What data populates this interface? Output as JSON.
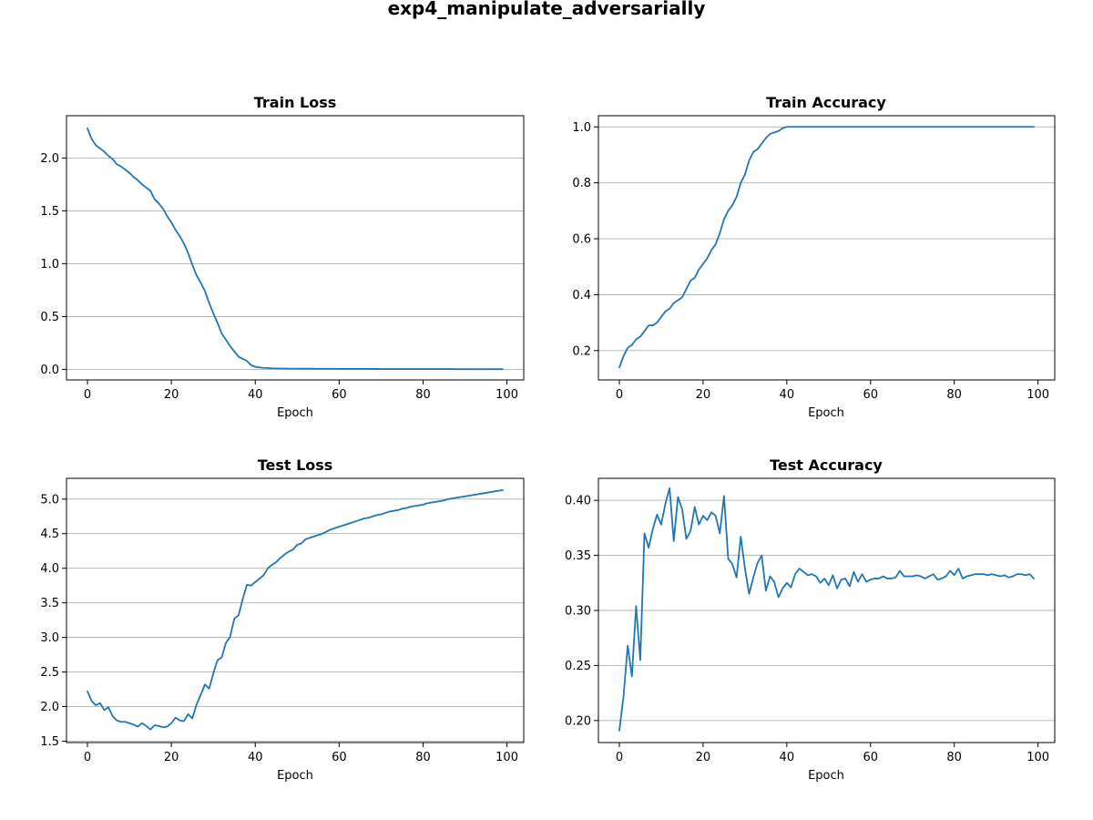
{
  "figure": {
    "title": "exp4_manipulate_adversarially"
  },
  "chart_data": [
    {
      "type": "line",
      "title": "Train Loss",
      "xlabel": "Epoch",
      "ylabel": "",
      "xlim": [
        -5,
        104
      ],
      "ylim": [
        -0.1,
        2.4
      ],
      "xticks": [
        0,
        20,
        40,
        60,
        80,
        100
      ],
      "yticks": [
        0.0,
        0.5,
        1.0,
        1.5,
        2.0
      ],
      "ytick_labels": [
        "0.0",
        "0.5",
        "1.0",
        "1.5",
        "2.0"
      ],
      "grid": "y",
      "color": "#1f77b4",
      "x": [
        0,
        1,
        2,
        3,
        4,
        5,
        6,
        7,
        8,
        9,
        10,
        11,
        12,
        13,
        14,
        15,
        16,
        17,
        18,
        19,
        20,
        21,
        22,
        23,
        24,
        25,
        26,
        27,
        28,
        29,
        30,
        31,
        32,
        33,
        34,
        35,
        36,
        37,
        38,
        39,
        40,
        41,
        42,
        43,
        44,
        45,
        46,
        47,
        48,
        49,
        50,
        51,
        52,
        53,
        54,
        55,
        56,
        57,
        58,
        59,
        60,
        61,
        62,
        63,
        64,
        65,
        66,
        67,
        68,
        69,
        70,
        71,
        72,
        73,
        74,
        75,
        76,
        77,
        78,
        79,
        80,
        81,
        82,
        83,
        84,
        85,
        86,
        87,
        88,
        89,
        90,
        91,
        92,
        93,
        94,
        95,
        96,
        97,
        98,
        99
      ],
      "y": [
        2.28,
        2.18,
        2.12,
        2.09,
        2.06,
        2.02,
        1.99,
        1.94,
        1.92,
        1.89,
        1.86,
        1.82,
        1.79,
        1.75,
        1.72,
        1.69,
        1.61,
        1.57,
        1.52,
        1.45,
        1.39,
        1.32,
        1.26,
        1.19,
        1.1,
        0.99,
        0.89,
        0.82,
        0.74,
        0.63,
        0.53,
        0.44,
        0.34,
        0.28,
        0.22,
        0.17,
        0.12,
        0.1,
        0.08,
        0.04,
        0.025,
        0.018,
        0.014,
        0.012,
        0.01,
        0.009,
        0.008,
        0.008,
        0.007,
        0.007,
        0.006,
        0.006,
        0.006,
        0.006,
        0.005,
        0.005,
        0.005,
        0.005,
        0.005,
        0.005,
        0.004,
        0.004,
        0.004,
        0.004,
        0.004,
        0.004,
        0.004,
        0.004,
        0.004,
        0.004,
        0.003,
        0.003,
        0.003,
        0.003,
        0.003,
        0.003,
        0.003,
        0.003,
        0.003,
        0.003,
        0.003,
        0.003,
        0.003,
        0.003,
        0.003,
        0.003,
        0.003,
        0.003,
        0.002,
        0.002,
        0.002,
        0.002,
        0.002,
        0.002,
        0.002,
        0.002,
        0.002,
        0.002,
        0.002,
        0.002
      ]
    },
    {
      "type": "line",
      "title": "Train Accuracy",
      "xlabel": "Epoch",
      "ylabel": "",
      "xlim": [
        -5,
        104
      ],
      "ylim": [
        0.095,
        1.04
      ],
      "xticks": [
        0,
        20,
        40,
        60,
        80,
        100
      ],
      "yticks": [
        0.2,
        0.4,
        0.6,
        0.8,
        1.0
      ],
      "ytick_labels": [
        "0.2",
        "0.4",
        "0.6",
        "0.8",
        "1.0"
      ],
      "grid": "y",
      "color": "#1f77b4",
      "x": [
        0,
        1,
        2,
        3,
        4,
        5,
        6,
        7,
        8,
        9,
        10,
        11,
        12,
        13,
        14,
        15,
        16,
        17,
        18,
        19,
        20,
        21,
        22,
        23,
        24,
        25,
        26,
        27,
        28,
        29,
        30,
        31,
        32,
        33,
        34,
        35,
        36,
        37,
        38,
        39,
        40,
        41,
        42,
        43,
        44,
        45,
        46,
        47,
        48,
        49,
        50,
        51,
        52,
        53,
        54,
        55,
        56,
        57,
        58,
        59,
        60,
        61,
        62,
        63,
        64,
        65,
        66,
        67,
        68,
        69,
        70,
        71,
        72,
        73,
        74,
        75,
        76,
        77,
        78,
        79,
        80,
        81,
        82,
        83,
        84,
        85,
        86,
        87,
        88,
        89,
        90,
        91,
        92,
        93,
        94,
        95,
        96,
        97,
        98,
        99
      ],
      "y": [
        0.14,
        0.18,
        0.21,
        0.22,
        0.24,
        0.25,
        0.27,
        0.29,
        0.29,
        0.3,
        0.32,
        0.34,
        0.35,
        0.37,
        0.38,
        0.39,
        0.42,
        0.45,
        0.46,
        0.49,
        0.51,
        0.53,
        0.56,
        0.58,
        0.62,
        0.67,
        0.7,
        0.72,
        0.75,
        0.8,
        0.83,
        0.88,
        0.91,
        0.92,
        0.94,
        0.96,
        0.975,
        0.98,
        0.985,
        0.995,
        1.0,
        1.0,
        1.0,
        1.0,
        1.0,
        1.0,
        1.0,
        1.0,
        1.0,
        1.0,
        1.0,
        1.0,
        1.0,
        1.0,
        1.0,
        1.0,
        1.0,
        1.0,
        1.0,
        1.0,
        1.0,
        1.0,
        1.0,
        1.0,
        1.0,
        1.0,
        1.0,
        1.0,
        1.0,
        1.0,
        1.0,
        1.0,
        1.0,
        1.0,
        1.0,
        1.0,
        1.0,
        1.0,
        1.0,
        1.0,
        1.0,
        1.0,
        1.0,
        1.0,
        1.0,
        1.0,
        1.0,
        1.0,
        1.0,
        1.0,
        1.0,
        1.0,
        1.0,
        1.0,
        1.0,
        1.0,
        1.0,
        1.0,
        1.0,
        1.0
      ]
    },
    {
      "type": "line",
      "title": "Test Loss",
      "xlabel": "Epoch",
      "ylabel": "",
      "xlim": [
        -5,
        104
      ],
      "ylim": [
        1.48,
        5.3
      ],
      "xticks": [
        0,
        20,
        40,
        60,
        80,
        100
      ],
      "yticks": [
        1.5,
        2.0,
        2.5,
        3.0,
        3.5,
        4.0,
        4.5,
        5.0
      ],
      "ytick_labels": [
        "1.5",
        "2.0",
        "2.5",
        "3.0",
        "3.5",
        "4.0",
        "4.5",
        "5.0"
      ],
      "grid": "y",
      "color": "#1f77b4",
      "x": [
        0,
        1,
        2,
        3,
        4,
        5,
        6,
        7,
        8,
        9,
        10,
        11,
        12,
        13,
        14,
        15,
        16,
        17,
        18,
        19,
        20,
        21,
        22,
        23,
        24,
        25,
        26,
        27,
        28,
        29,
        30,
        31,
        32,
        33,
        34,
        35,
        36,
        37,
        38,
        39,
        40,
        41,
        42,
        43,
        44,
        45,
        46,
        47,
        48,
        49,
        50,
        51,
        52,
        53,
        54,
        55,
        56,
        57,
        58,
        59,
        60,
        61,
        62,
        63,
        64,
        65,
        66,
        67,
        68,
        69,
        70,
        71,
        72,
        73,
        74,
        75,
        76,
        77,
        78,
        79,
        80,
        81,
        82,
        83,
        84,
        85,
        86,
        87,
        88,
        89,
        90,
        91,
        92,
        93,
        94,
        95,
        96,
        97,
        98,
        99
      ],
      "y": [
        2.22,
        2.08,
        2.02,
        2.05,
        1.95,
        1.99,
        1.86,
        1.8,
        1.78,
        1.78,
        1.76,
        1.74,
        1.71,
        1.76,
        1.72,
        1.67,
        1.73,
        1.72,
        1.7,
        1.71,
        1.76,
        1.84,
        1.8,
        1.79,
        1.89,
        1.83,
        2.03,
        2.17,
        2.32,
        2.26,
        2.48,
        2.67,
        2.71,
        2.92,
        3.01,
        3.27,
        3.32,
        3.55,
        3.76,
        3.75,
        3.8,
        3.85,
        3.9,
        4.0,
        4.05,
        4.09,
        4.15,
        4.2,
        4.24,
        4.27,
        4.34,
        4.36,
        4.42,
        4.44,
        4.46,
        4.48,
        4.5,
        4.53,
        4.56,
        4.58,
        4.6,
        4.62,
        4.64,
        4.66,
        4.68,
        4.7,
        4.72,
        4.73,
        4.75,
        4.77,
        4.78,
        4.8,
        4.82,
        4.83,
        4.84,
        4.86,
        4.87,
        4.89,
        4.9,
        4.91,
        4.92,
        4.94,
        4.95,
        4.96,
        4.97,
        4.98,
        5.0,
        5.01,
        5.02,
        5.03,
        5.04,
        5.05,
        5.06,
        5.07,
        5.08,
        5.09,
        5.1,
        5.11,
        5.12,
        5.13
      ]
    },
    {
      "type": "line",
      "title": "Test Accuracy",
      "xlabel": "Epoch",
      "ylabel": "",
      "xlim": [
        -5,
        104
      ],
      "ylim": [
        0.18,
        0.42
      ],
      "xticks": [
        0,
        20,
        40,
        60,
        80,
        100
      ],
      "yticks": [
        0.2,
        0.25,
        0.3,
        0.35,
        0.4
      ],
      "ytick_labels": [
        "0.20",
        "0.25",
        "0.30",
        "0.35",
        "0.40"
      ],
      "grid": "y",
      "color": "#1f77b4",
      "x": [
        0,
        1,
        2,
        3,
        4,
        5,
        6,
        7,
        8,
        9,
        10,
        11,
        12,
        13,
        14,
        15,
        16,
        17,
        18,
        19,
        20,
        21,
        22,
        23,
        24,
        25,
        26,
        27,
        28,
        29,
        30,
        31,
        32,
        33,
        34,
        35,
        36,
        37,
        38,
        39,
        40,
        41,
        42,
        43,
        44,
        45,
        46,
        47,
        48,
        49,
        50,
        51,
        52,
        53,
        54,
        55,
        56,
        57,
        58,
        59,
        60,
        61,
        62,
        63,
        64,
        65,
        66,
        67,
        68,
        69,
        70,
        71,
        72,
        73,
        74,
        75,
        76,
        77,
        78,
        79,
        80,
        81,
        82,
        83,
        84,
        85,
        86,
        87,
        88,
        89,
        90,
        91,
        92,
        93,
        94,
        95,
        96,
        97,
        98,
        99
      ],
      "y": [
        0.191,
        0.222,
        0.268,
        0.24,
        0.304,
        0.255,
        0.37,
        0.357,
        0.374,
        0.387,
        0.378,
        0.397,
        0.411,
        0.363,
        0.403,
        0.392,
        0.365,
        0.372,
        0.394,
        0.378,
        0.386,
        0.382,
        0.389,
        0.386,
        0.37,
        0.404,
        0.347,
        0.342,
        0.33,
        0.367,
        0.338,
        0.315,
        0.33,
        0.343,
        0.35,
        0.318,
        0.331,
        0.326,
        0.312,
        0.32,
        0.325,
        0.321,
        0.333,
        0.338,
        0.335,
        0.332,
        0.333,
        0.331,
        0.325,
        0.329,
        0.323,
        0.332,
        0.32,
        0.328,
        0.329,
        0.322,
        0.335,
        0.326,
        0.333,
        0.326,
        0.328,
        0.329,
        0.329,
        0.331,
        0.329,
        0.329,
        0.33,
        0.336,
        0.331,
        0.331,
        0.331,
        0.332,
        0.331,
        0.329,
        0.331,
        0.333,
        0.328,
        0.329,
        0.331,
        0.336,
        0.332,
        0.338,
        0.329,
        0.331,
        0.332,
        0.333,
        0.333,
        0.333,
        0.332,
        0.333,
        0.332,
        0.331,
        0.332,
        0.33,
        0.331,
        0.333,
        0.333,
        0.332,
        0.333,
        0.329
      ]
    }
  ]
}
